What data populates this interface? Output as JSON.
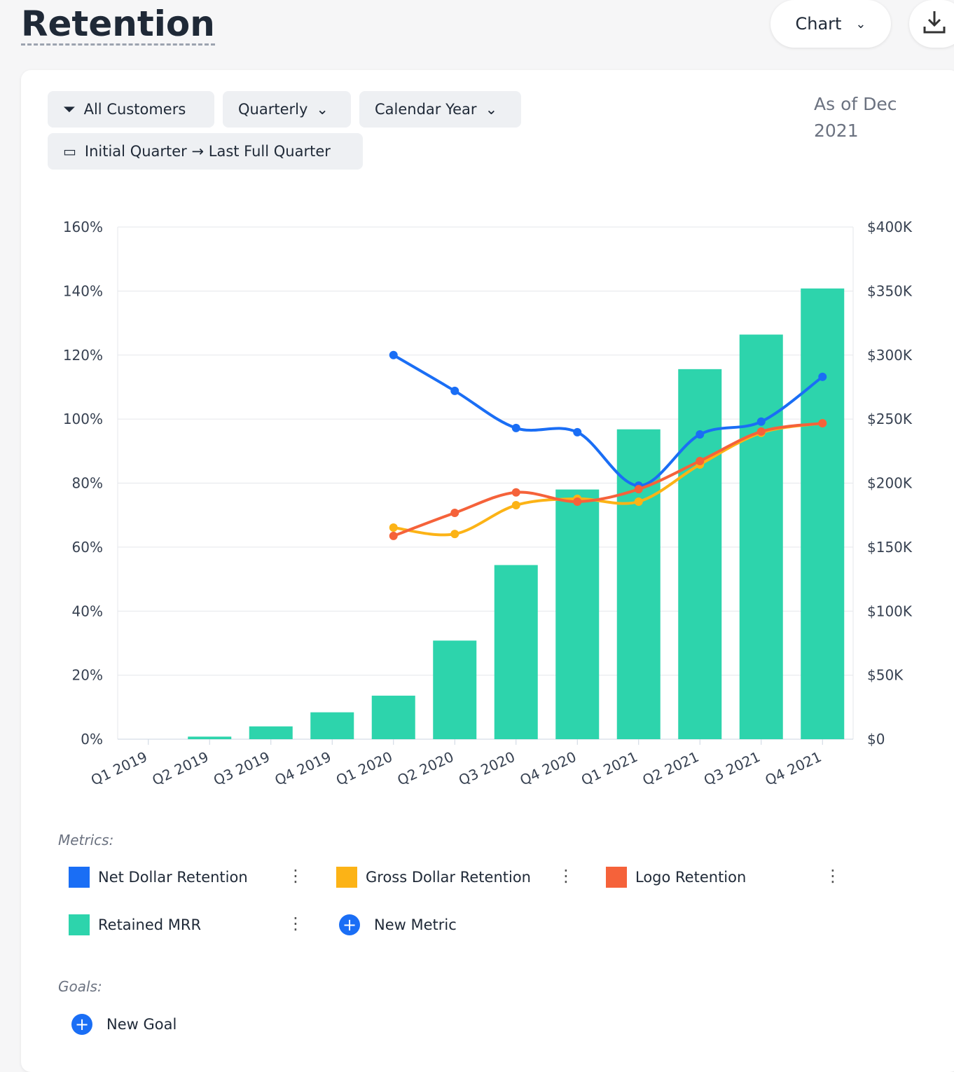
{
  "header": {
    "title": "Retention",
    "view_button": "Chart"
  },
  "filters": {
    "customers": "All Customers",
    "period": "Quarterly",
    "year_type": "Calendar Year",
    "range": "Initial Quarter → Last Full Quarter"
  },
  "as_of": "As of Dec 2021",
  "chart_data": {
    "type": "combo",
    "categories": [
      "Q1 2019",
      "Q2 2019",
      "Q3 2019",
      "Q4 2019",
      "Q1 2020",
      "Q2 2020",
      "Q3 2020",
      "Q4 2020",
      "Q1 2021",
      "Q2 2021",
      "Q3 2021",
      "Q4 2021"
    ],
    "ylim": [
      0,
      160
    ],
    "yticks": [
      {
        "value": 0,
        "label": "0%"
      },
      {
        "value": 20,
        "label": "20%"
      },
      {
        "value": 40,
        "label": "40%"
      },
      {
        "value": 60,
        "label": "60%"
      },
      {
        "value": 80,
        "label": "80%"
      },
      {
        "value": 100,
        "label": "100%"
      },
      {
        "value": 120,
        "label": "120%"
      },
      {
        "value": 140,
        "label": "140%"
      },
      {
        "value": 160,
        "label": "160%"
      }
    ],
    "y2lim": [
      0,
      400000
    ],
    "y2ticks": [
      {
        "value": 0,
        "label": "$0"
      },
      {
        "value": 50000,
        "label": "$50K"
      },
      {
        "value": 100000,
        "label": "$100K"
      },
      {
        "value": 150000,
        "label": "$150K"
      },
      {
        "value": 200000,
        "label": "$200K"
      },
      {
        "value": 250000,
        "label": "$250K"
      },
      {
        "value": 300000,
        "label": "$300K"
      },
      {
        "value": 350000,
        "label": "$350K"
      },
      {
        "value": 400000,
        "label": "$400K"
      }
    ],
    "grid": true,
    "series": [
      {
        "name": "Net Dollar Retention",
        "type": "line",
        "color": "#1a6ef5",
        "values": [
          null,
          null,
          null,
          null,
          120.0,
          108.8,
          97.2,
          95.9,
          79.2,
          95.2,
          99.2,
          113.2
        ]
      },
      {
        "name": "Gross Dollar Retention",
        "type": "line",
        "color": "#fcb316",
        "values": [
          null,
          null,
          null,
          null,
          66.1,
          64.1,
          73.1,
          75.1,
          74.2,
          85.8,
          95.7,
          98.7
        ]
      },
      {
        "name": "Logo Retention",
        "type": "line",
        "color": "#f5623a",
        "values": [
          null,
          null,
          null,
          null,
          63.5,
          70.7,
          77.1,
          74.2,
          78.1,
          86.9,
          96.1,
          98.7
        ]
      },
      {
        "name": "Retained MRR",
        "type": "bar",
        "axis": "y2",
        "color": "#2dd4ac",
        "values": [
          0,
          2000,
          10000,
          21000,
          34000,
          77000,
          136000,
          195000,
          242000,
          289000,
          316000,
          352000
        ]
      }
    ]
  },
  "legend": {
    "metrics_label": "Metrics:",
    "new_metric": "New Metric",
    "goals_label": "Goals:",
    "new_goal": "New Goal"
  }
}
